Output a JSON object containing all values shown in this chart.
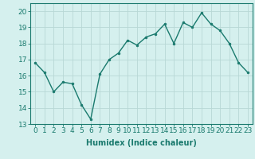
{
  "x": [
    0,
    1,
    2,
    3,
    4,
    5,
    6,
    7,
    8,
    9,
    10,
    11,
    12,
    13,
    14,
    15,
    16,
    17,
    18,
    19,
    20,
    21,
    22,
    23
  ],
  "y": [
    16.8,
    16.2,
    15.0,
    15.6,
    15.5,
    14.2,
    13.3,
    16.1,
    17.0,
    17.4,
    18.2,
    17.9,
    18.4,
    18.6,
    19.2,
    18.0,
    19.3,
    19.0,
    19.9,
    19.2,
    18.8,
    18.0,
    16.8,
    16.2
  ],
  "line_color": "#1a7a6e",
  "marker": "o",
  "marker_size": 2,
  "bg_color": "#d5f0ee",
  "grid_color": "#b8d8d5",
  "xlabel": "Humidex (Indice chaleur)",
  "xlim": [
    -0.5,
    23.5
  ],
  "ylim": [
    13,
    20.5
  ],
  "yticks": [
    13,
    14,
    15,
    16,
    17,
    18,
    19,
    20
  ],
  "xticks": [
    0,
    1,
    2,
    3,
    4,
    5,
    6,
    7,
    8,
    9,
    10,
    11,
    12,
    13,
    14,
    15,
    16,
    17,
    18,
    19,
    20,
    21,
    22,
    23
  ],
  "xlabel_fontsize": 7,
  "tick_fontsize": 6.5
}
